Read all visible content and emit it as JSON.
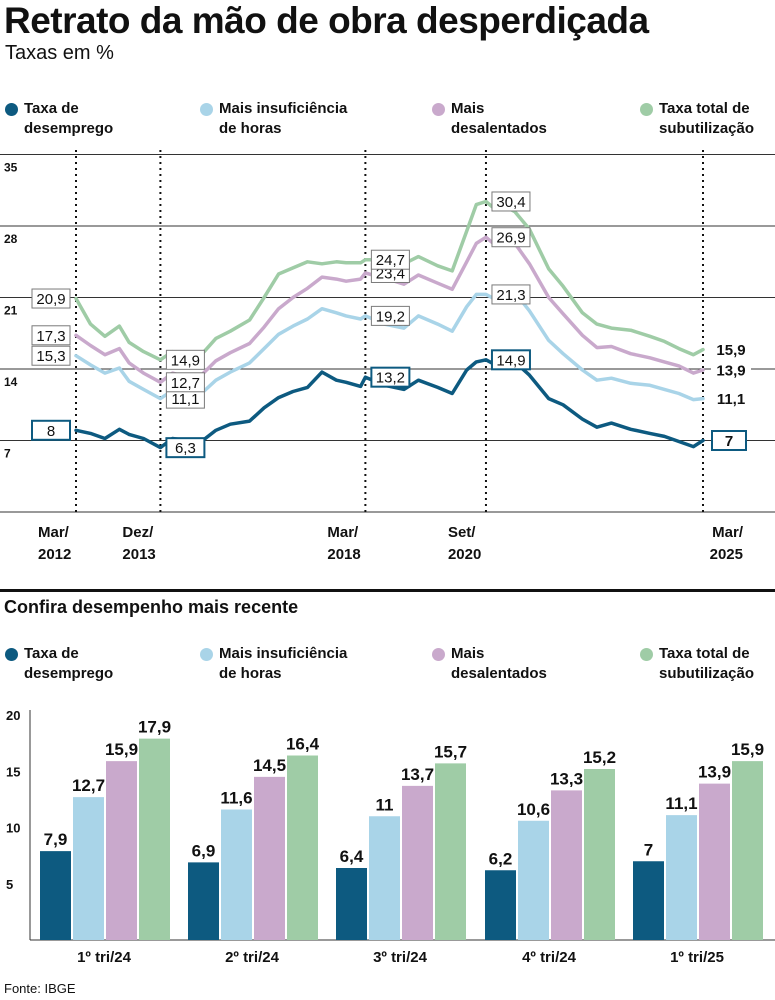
{
  "title": "Retrato da mão de obra desperdiçada",
  "subtitle": "Taxas em %",
  "source": "Fonte: IBGE",
  "colors": {
    "desemprego": "#0d5a80",
    "insuficiencia": "#a9d4e8",
    "desalentados": "#c9a9cc",
    "subutilizacao": "#9fcca6"
  },
  "legend": [
    {
      "key": "desemprego",
      "line1": "Taxa de",
      "line2": "desemprego"
    },
    {
      "key": "insuficiencia",
      "line1": "Mais insuficiência",
      "line2": "de horas"
    },
    {
      "key": "desalentados",
      "line1": "Mais",
      "line2": "desalentados"
    },
    {
      "key": "subutilizacao",
      "line1": "Taxa total de",
      "line2": "subutilização"
    }
  ],
  "section2_title": "Confira desempenho mais recente",
  "chart_data": [
    {
      "type": "line",
      "title": "Retrato da mão de obra desperdiçada",
      "ylabel": "Taxas em %",
      "ylim": [
        0,
        35
      ],
      "yticks": [
        7,
        14,
        21,
        28,
        35
      ],
      "xlim": [
        2012.0,
        2025.0
      ],
      "grid": true,
      "markers": [
        {
          "x": 2012.0,
          "line1": "Mar/",
          "line2": "2012"
        },
        {
          "x": 2013.75,
          "line1": "Dez/",
          "line2": "2013"
        },
        {
          "x": 2018.0,
          "line1": "Mar/",
          "line2": "2018"
        },
        {
          "x": 2020.5,
          "line1": "Set/",
          "line2": "2020"
        },
        {
          "x": 2025.0,
          "line1": "Mar/",
          "line2": "2025"
        }
      ],
      "series": [
        {
          "key": "desemprego",
          "name": "Taxa de desemprego",
          "x": [
            2012.0,
            2012.3,
            2012.6,
            2012.9,
            2013.1,
            2013.4,
            2013.75,
            2014.0,
            2014.3,
            2014.6,
            2014.9,
            2015.2,
            2015.6,
            2015.9,
            2016.2,
            2016.5,
            2016.8,
            2017.1,
            2017.4,
            2017.6,
            2017.9,
            2018.0,
            2018.4,
            2018.8,
            2019.1,
            2019.5,
            2019.8,
            2020.1,
            2020.3,
            2020.5,
            2020.7,
            2020.9,
            2021.1,
            2021.4,
            2021.8,
            2022.1,
            2022.5,
            2022.8,
            2023.1,
            2023.5,
            2023.9,
            2024.2,
            2024.5,
            2024.8,
            2025.0
          ],
          "values": [
            8,
            7.7,
            7.2,
            8.1,
            7.6,
            7.2,
            6.3,
            7.2,
            7.0,
            6.9,
            8.0,
            8.6,
            8.9,
            10.2,
            11.2,
            11.8,
            12.2,
            13.7,
            12.9,
            12.7,
            12.3,
            13.2,
            12.4,
            12.0,
            12.9,
            12.2,
            11.6,
            13.9,
            14.7,
            14.9,
            14.4,
            14.8,
            14.7,
            13.4,
            11.1,
            10.5,
            9.1,
            8.3,
            8.7,
            8.1,
            7.7,
            7.4,
            6.9,
            6.4,
            7
          ]
        },
        {
          "key": "insuficiencia",
          "name": "Mais insuficiência de horas",
          "x": [
            2012.0,
            2012.3,
            2012.6,
            2012.9,
            2013.1,
            2013.4,
            2013.75,
            2014.0,
            2014.3,
            2014.6,
            2014.9,
            2015.2,
            2015.6,
            2015.9,
            2016.2,
            2016.5,
            2016.8,
            2017.1,
            2017.4,
            2017.6,
            2017.9,
            2018.0,
            2018.4,
            2018.8,
            2019.1,
            2019.5,
            2019.8,
            2020.1,
            2020.3,
            2020.5,
            2020.7,
            2020.9,
            2021.1,
            2021.4,
            2021.8,
            2022.1,
            2022.5,
            2022.8,
            2023.1,
            2023.5,
            2023.9,
            2024.2,
            2024.5,
            2024.8,
            2025.0
          ],
          "values": [
            15.3,
            14.4,
            13.6,
            14.1,
            12.8,
            12.0,
            11.1,
            11.9,
            11.4,
            11.6,
            12.9,
            13.7,
            14.6,
            16.0,
            17.4,
            18.2,
            18.9,
            19.9,
            19.5,
            19.2,
            18.9,
            19.2,
            18.4,
            18.0,
            19.2,
            18.4,
            17.7,
            20.1,
            21.3,
            21.3,
            20.8,
            21.4,
            21.5,
            19.7,
            16.8,
            15.5,
            13.9,
            12.9,
            13.1,
            12.6,
            12.4,
            12.0,
            11.6,
            11.0,
            11.1
          ]
        },
        {
          "key": "desalentados",
          "name": "Mais desalentados",
          "x": [
            2012.0,
            2012.3,
            2012.6,
            2012.9,
            2013.1,
            2013.4,
            2013.75,
            2014.0,
            2014.3,
            2014.6,
            2014.9,
            2015.2,
            2015.6,
            2015.9,
            2016.2,
            2016.5,
            2016.8,
            2017.1,
            2017.4,
            2017.6,
            2017.9,
            2018.0,
            2018.4,
            2018.8,
            2019.1,
            2019.5,
            2019.8,
            2020.1,
            2020.3,
            2020.5,
            2020.7,
            2020.9,
            2021.1,
            2021.4,
            2021.8,
            2022.1,
            2022.5,
            2022.8,
            2023.1,
            2023.5,
            2023.9,
            2024.2,
            2024.5,
            2024.8,
            2025.0
          ],
          "values": [
            17.3,
            16.3,
            15.4,
            16.0,
            14.6,
            13.6,
            12.7,
            13.6,
            13.2,
            13.4,
            14.8,
            15.6,
            16.5,
            18.1,
            19.9,
            21.0,
            21.9,
            23.0,
            22.8,
            22.6,
            22.8,
            23.4,
            22.9,
            22.3,
            23.2,
            22.4,
            21.8,
            24.5,
            26.3,
            26.9,
            26.1,
            26.5,
            26.3,
            24.3,
            21.0,
            19.4,
            17.3,
            16.1,
            16.2,
            15.5,
            15.1,
            14.7,
            14.3,
            13.6,
            13.9
          ]
        },
        {
          "key": "subutilizacao",
          "name": "Taxa total de subutilização",
          "x": [
            2012.0,
            2012.3,
            2012.6,
            2012.9,
            2013.1,
            2013.4,
            2013.75,
            2014.0,
            2014.3,
            2014.6,
            2014.9,
            2015.2,
            2015.6,
            2015.9,
            2016.2,
            2016.5,
            2016.8,
            2017.1,
            2017.4,
            2017.6,
            2017.9,
            2018.0,
            2018.4,
            2018.8,
            2019.1,
            2019.5,
            2019.8,
            2020.1,
            2020.3,
            2020.5,
            2020.7,
            2020.9,
            2021.1,
            2021.4,
            2021.8,
            2022.1,
            2022.5,
            2022.8,
            2023.1,
            2023.5,
            2023.9,
            2024.2,
            2024.5,
            2024.8,
            2025.0
          ],
          "values": [
            20.9,
            18.4,
            17.2,
            18.2,
            16.6,
            15.7,
            14.9,
            15.7,
            15.2,
            15.4,
            17.0,
            17.7,
            18.8,
            21.0,
            23.3,
            23.9,
            24.5,
            24.3,
            24.5,
            24.4,
            24.4,
            24.7,
            24.7,
            24.3,
            25.0,
            24.1,
            23.6,
            27.5,
            30.1,
            30.4,
            29.6,
            29.9,
            29.4,
            27.7,
            23.8,
            22.1,
            19.5,
            18.4,
            18.0,
            17.8,
            17.2,
            16.7,
            16.0,
            15.4,
            15.9
          ]
        }
      ],
      "annotations": [
        {
          "series": "desemprego",
          "x": 2012.0,
          "label": "8"
        },
        {
          "series": "desemprego",
          "x": 2013.75,
          "label": "6,3"
        },
        {
          "series": "desemprego",
          "x": 2018.0,
          "label": "13,2"
        },
        {
          "series": "desemprego",
          "x": 2020.5,
          "label": "14,9"
        },
        {
          "series": "desemprego",
          "x": 2025.0,
          "label": "7"
        },
        {
          "series": "insuficiencia",
          "x": 2012.0,
          "label": "15,3"
        },
        {
          "series": "insuficiencia",
          "x": 2013.75,
          "label": "11,1"
        },
        {
          "series": "insuficiencia",
          "x": 2018.0,
          "label": "19,2"
        },
        {
          "series": "insuficiencia",
          "x": 2020.5,
          "label": "21,3"
        },
        {
          "series": "insuficiencia",
          "x": 2025.0,
          "label": "11,1"
        },
        {
          "series": "desalentados",
          "x": 2012.0,
          "label": "17,3"
        },
        {
          "series": "desalentados",
          "x": 2013.75,
          "label": "12,7"
        },
        {
          "series": "desalentados",
          "x": 2018.0,
          "label": "23,4"
        },
        {
          "series": "desalentados",
          "x": 2020.5,
          "label": "26,9"
        },
        {
          "series": "desalentados",
          "x": 2025.0,
          "label": "13,9"
        },
        {
          "series": "subutilizacao",
          "x": 2012.0,
          "label": "20,9"
        },
        {
          "series": "subutilizacao",
          "x": 2013.75,
          "label": "14,9"
        },
        {
          "series": "subutilizacao",
          "x": 2018.0,
          "label": "24,7"
        },
        {
          "series": "subutilizacao",
          "x": 2020.5,
          "label": "30,4"
        },
        {
          "series": "subutilizacao",
          "x": 2025.0,
          "label": "15,9"
        }
      ]
    },
    {
      "type": "bar",
      "title": "Confira desempenho mais recente",
      "ylim": [
        0,
        20
      ],
      "yticks": [
        5,
        10,
        15,
        20
      ],
      "categories": [
        "1º tri/24",
        "2º tri/24",
        "3º tri/24",
        "4º tri/24",
        "1º tri/25"
      ],
      "series": [
        {
          "key": "desemprego",
          "name": "Taxa de desemprego",
          "values": [
            7.9,
            6.9,
            6.4,
            6.2,
            7
          ],
          "labels": [
            "7,9",
            "6,9",
            "6,4",
            "6,2",
            "7"
          ]
        },
        {
          "key": "insuficiencia",
          "name": "Mais insuficiência de horas",
          "values": [
            12.7,
            11.6,
            11,
            10.6,
            11.1
          ],
          "labels": [
            "12,7",
            "11,6",
            "11",
            "10,6",
            "11,1"
          ]
        },
        {
          "key": "desalentados",
          "name": "Mais desalentados",
          "values": [
            15.9,
            14.5,
            13.7,
            13.3,
            13.9
          ],
          "labels": [
            "15,9",
            "14,5",
            "13,7",
            "13,3",
            "13,9"
          ]
        },
        {
          "key": "subutilizacao",
          "name": "Taxa total de subutilização",
          "values": [
            17.9,
            16.4,
            15.7,
            15.2,
            15.9
          ],
          "labels": [
            "17,9",
            "16,4",
            "15,7",
            "15,2",
            "15,9"
          ]
        }
      ]
    }
  ]
}
